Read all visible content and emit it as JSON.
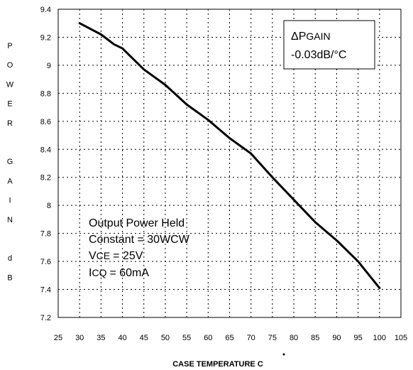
{
  "chart_data": {
    "type": "line",
    "xlabel": "CASE TEMPERATURE C",
    "ylabel_letters": [
      "P",
      "O",
      "W",
      "E",
      "R",
      "",
      "G",
      "A",
      "I",
      "N",
      "",
      "d",
      "B"
    ],
    "xlim": [
      25,
      105
    ],
    "ylim": [
      7.2,
      9.4
    ],
    "x_ticks": [
      "25",
      "30",
      "35",
      "40",
      "45",
      "50",
      "55",
      "60",
      "65",
      "70",
      "75",
      "80",
      "85",
      "90",
      "95",
      "100",
      "105"
    ],
    "y_ticks": [
      "7.2",
      "7.4",
      "7.6",
      "7.8",
      "8",
      "8.2",
      "8.4",
      "8.6",
      "8.8",
      "9",
      "9.2",
      "9.4"
    ],
    "grid": true,
    "grid_style": "dotted",
    "line_color": "#000000",
    "series": [
      {
        "x": [
          30,
          35,
          38,
          40,
          42,
          45,
          50,
          55,
          60,
          65,
          70,
          75,
          80,
          85,
          90,
          95,
          100
        ],
        "y": [
          9.3,
          9.22,
          9.15,
          9.12,
          9.06,
          8.97,
          8.86,
          8.72,
          8.61,
          8.48,
          8.37,
          8.2,
          8.04,
          7.88,
          7.75,
          7.6,
          7.41
        ]
      }
    ],
    "box": {
      "symbol": "Δ",
      "main": "P",
      "sub": "GAIN",
      "value": "-0.03dB/°C"
    },
    "annotation": {
      "line1": "Output Power Held",
      "line2": "Constant = 30WCW",
      "vce_main": "V",
      "vce_sub": "CE",
      "vce_value": "= 25V",
      "icq_main": "I",
      "icq_sub": "CQ",
      "icq_value": "= 60mA"
    }
  }
}
